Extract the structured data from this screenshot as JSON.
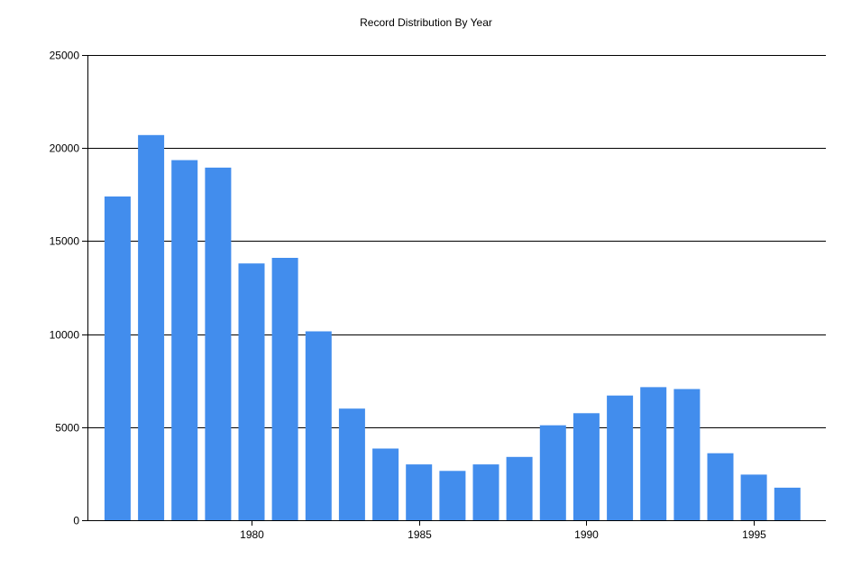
{
  "chart_data": {
    "type": "bar",
    "title": "Record Distribution By Year",
    "xlabel": "",
    "ylabel": "",
    "x": [
      1976,
      1977,
      1978,
      1979,
      1980,
      1981,
      1982,
      1983,
      1984,
      1985,
      1986,
      1987,
      1988,
      1989,
      1990,
      1991,
      1992,
      1993,
      1994,
      1995,
      1996
    ],
    "values": [
      17400,
      20700,
      19350,
      18950,
      13800,
      14100,
      10150,
      6000,
      3850,
      3000,
      2650,
      3000,
      3400,
      5100,
      5750,
      6700,
      7150,
      7050,
      3600,
      2450,
      1750
    ],
    "xticks": [
      "1980",
      "1985",
      "1990",
      "1995"
    ],
    "yticks": [
      "0",
      "5000",
      "10000",
      "15000",
      "20000",
      "25000"
    ],
    "ylim": [
      0,
      25000
    ],
    "grid": "horizontal",
    "bar_color": "#428ded"
  }
}
